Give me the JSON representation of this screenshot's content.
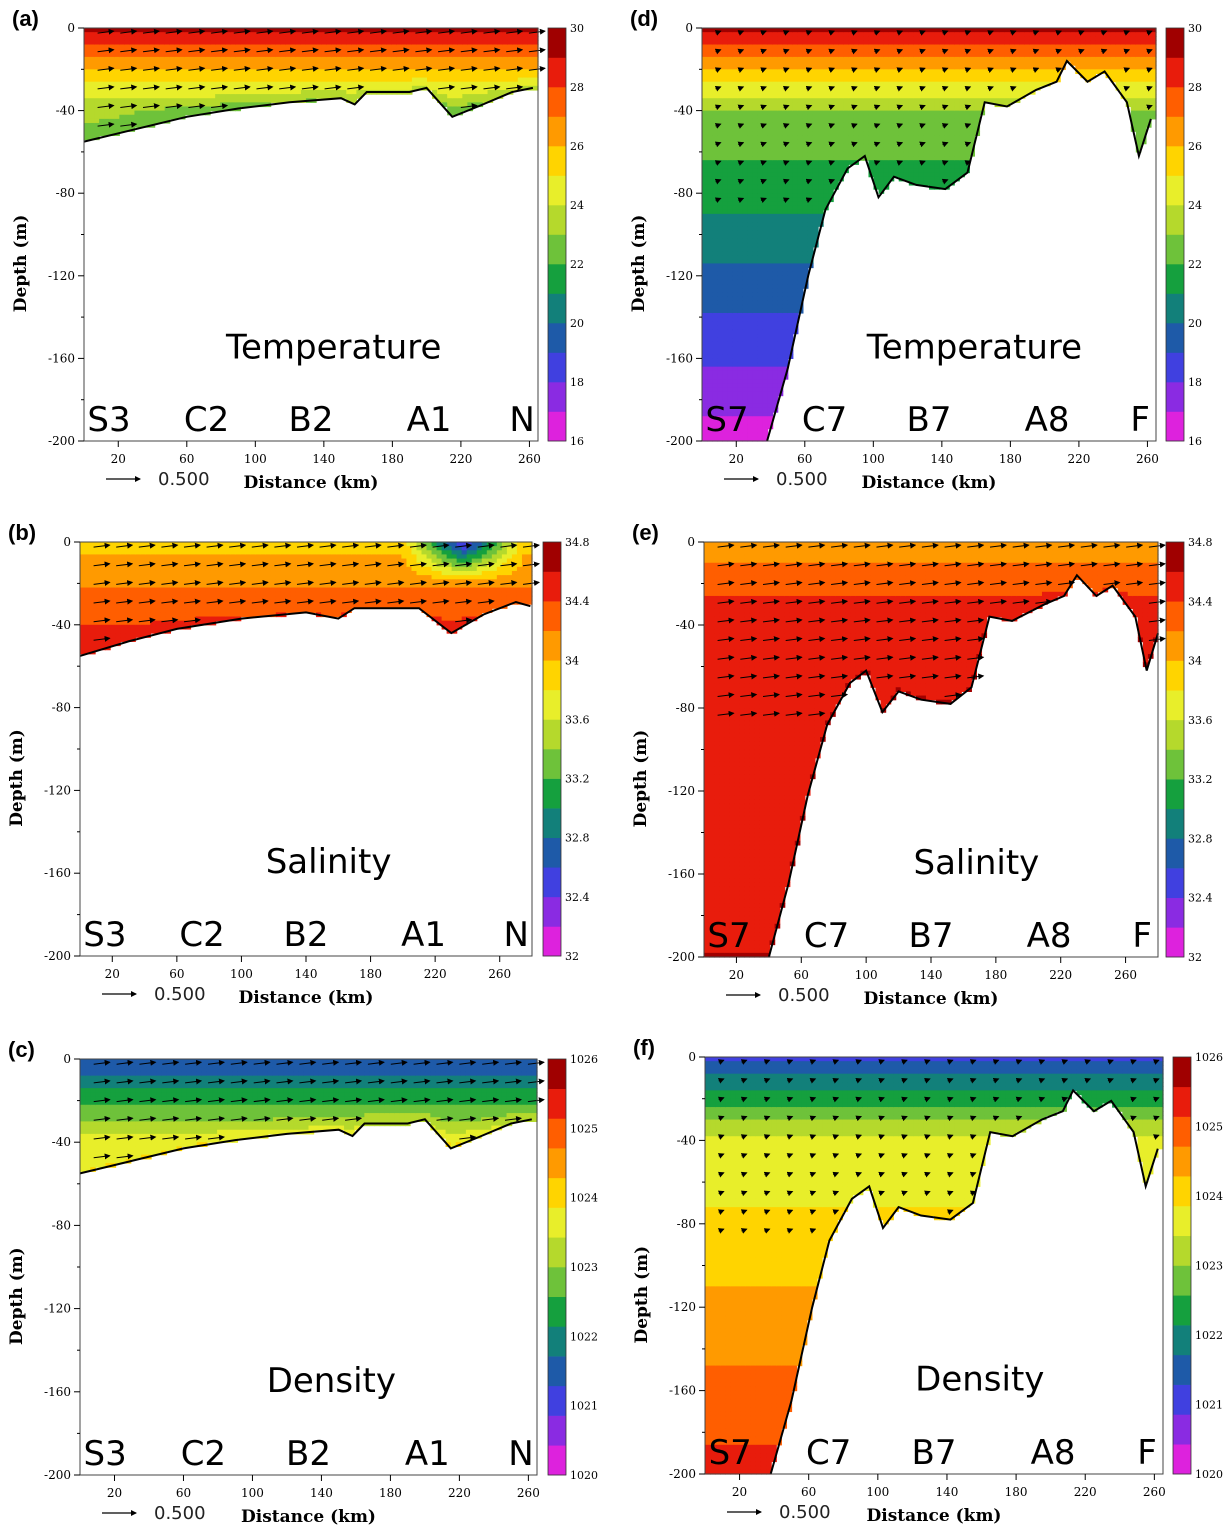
{
  "colorbar_colors": [
    "#dd22dd",
    "#8a2be2",
    "#4040e0",
    "#1e5aa8",
    "#12807a",
    "#15a03e",
    "#6ec23a",
    "#b5d92c",
    "#e8ee2a",
    "#ffd400",
    "#ff9a00",
    "#ff5e00",
    "#e81c0c",
    "#a00000"
  ],
  "chart_data": [
    {
      "id": "a",
      "type": "heatmap",
      "panel_label": "(a)",
      "title": "Temperature",
      "xlabel": "Distance (km)",
      "ylabel": "Depth (m)",
      "xticks": [
        "20",
        "60",
        "100",
        "140",
        "180",
        "220",
        "260"
      ],
      "xlim": [
        0,
        265
      ],
      "yticks": [
        "0",
        "-40",
        "-80",
        "-120",
        "-160",
        "-200"
      ],
      "ylim": [
        -200,
        0
      ],
      "stations": [
        "S3",
        "C2",
        "B2",
        "A1",
        "N"
      ],
      "reference_vector": "0.500",
      "colorbar": {
        "min": 16,
        "max": 30,
        "labels": [
          "30",
          "28",
          "26",
          "24",
          "22",
          "20",
          "18",
          "16"
        ]
      },
      "bottom_depth": [
        [
          0,
          -55
        ],
        [
          30,
          -49
        ],
        [
          60,
          -43
        ],
        [
          90,
          -39
        ],
        [
          120,
          -36
        ],
        [
          150,
          -34
        ],
        [
          158,
          -37
        ],
        [
          165,
          -31
        ],
        [
          190,
          -31
        ],
        [
          200,
          -29
        ],
        [
          215,
          -43
        ],
        [
          230,
          -38
        ],
        [
          250,
          -31
        ],
        [
          262,
          -29
        ]
      ],
      "surface_value": 29.5,
      "bottom_value": 23,
      "far_field": {
        "gradient_m": 0,
        "floor_value": 20
      }
    },
    {
      "id": "b",
      "type": "heatmap",
      "panel_label": "(b)",
      "title": "Salinity",
      "xlabel": "Distance (km)",
      "ylabel": "Depth (m)",
      "xticks": [
        "20",
        "60",
        "100",
        "140",
        "180",
        "220",
        "260"
      ],
      "xlim": [
        0,
        280
      ],
      "yticks": [
        "0",
        "-40",
        "-80",
        "-120",
        "-160",
        "-200"
      ],
      "ylim": [
        -200,
        0
      ],
      "stations": [
        "S3",
        "C2",
        "B2",
        "A1",
        "N"
      ],
      "reference_vector": "0.500",
      "colorbar": {
        "min": 32,
        "max": 34.8,
        "labels": [
          "34.8",
          "34.4",
          "34",
          "33.6",
          "33.2",
          "32.8",
          "32.4",
          "32"
        ]
      },
      "bottom_depth": [
        [
          0,
          -55
        ],
        [
          30,
          -48
        ],
        [
          60,
          -42
        ],
        [
          100,
          -37
        ],
        [
          140,
          -34
        ],
        [
          160,
          -37
        ],
        [
          170,
          -32
        ],
        [
          210,
          -32
        ],
        [
          230,
          -44
        ],
        [
          250,
          -35
        ],
        [
          270,
          -29
        ],
        [
          279,
          -31
        ]
      ],
      "surface_value": 33.9,
      "bottom_value": 34.4,
      "low_salinity_patch": {
        "x": [
          200,
          275
        ],
        "min_value": 32.3
      }
    },
    {
      "id": "c",
      "type": "heatmap",
      "panel_label": "(c)",
      "title": "Density",
      "xlabel": "Distance (km)",
      "ylabel": "Depth (m)",
      "xticks": [
        "20",
        "60",
        "100",
        "140",
        "180",
        "220",
        "260"
      ],
      "xlim": [
        0,
        265
      ],
      "yticks": [
        "0",
        "-40",
        "-80",
        "-120",
        "-160",
        "-200"
      ],
      "ylim": [
        -200,
        0
      ],
      "stations": [
        "S3",
        "C2",
        "B2",
        "A1",
        "N"
      ],
      "reference_vector": "0.500",
      "colorbar": {
        "min": 1020,
        "max": 1026,
        "labels": [
          "1026",
          "1025",
          "1024",
          "1023",
          "1022",
          "1021",
          "1020"
        ]
      },
      "bottom_depth": [
        [
          0,
          -55
        ],
        [
          30,
          -49
        ],
        [
          60,
          -43
        ],
        [
          90,
          -39
        ],
        [
          120,
          -36
        ],
        [
          150,
          -34
        ],
        [
          158,
          -37
        ],
        [
          165,
          -31
        ],
        [
          190,
          -31
        ],
        [
          200,
          -29
        ],
        [
          215,
          -43
        ],
        [
          230,
          -38
        ],
        [
          250,
          -31
        ],
        [
          262,
          -29
        ]
      ],
      "surface_value": 1021.2,
      "bottom_value": 1023.6
    },
    {
      "id": "d",
      "type": "heatmap",
      "panel_label": "(d)",
      "title": "Temperature",
      "xlabel": "Distance (km)",
      "ylabel": "Depth (m)",
      "xticks": [
        "20",
        "60",
        "100",
        "140",
        "180",
        "220",
        "260"
      ],
      "xlim": [
        0,
        265
      ],
      "yticks": [
        "0",
        "-40",
        "-80",
        "-120",
        "-160",
        "-200"
      ],
      "ylim": [
        -200,
        0
      ],
      "stations": [
        "S7",
        "C7",
        "B7",
        "A8",
        "F"
      ],
      "reference_vector": "0.500",
      "colorbar": {
        "min": 16,
        "max": 30,
        "labels": [
          "30",
          "28",
          "26",
          "24",
          "22",
          "20",
          "18",
          "16"
        ]
      },
      "bottom_depth": [
        [
          38,
          -200
        ],
        [
          50,
          -165
        ],
        [
          62,
          -120
        ],
        [
          72,
          -88
        ],
        [
          85,
          -68
        ],
        [
          95,
          -62
        ],
        [
          103,
          -82
        ],
        [
          112,
          -72
        ],
        [
          125,
          -76
        ],
        [
          142,
          -78
        ],
        [
          155,
          -70
        ],
        [
          165,
          -36
        ],
        [
          178,
          -38
        ],
        [
          195,
          -30
        ],
        [
          207,
          -26
        ],
        [
          213,
          -16
        ],
        [
          225,
          -26
        ],
        [
          235,
          -21
        ],
        [
          248,
          -36
        ],
        [
          255,
          -62
        ],
        [
          262,
          -44
        ]
      ],
      "surface_value": 29.5,
      "bottom_value": 23,
      "far_field": {
        "gradient_m": 200,
        "floor_value": 16.5
      }
    },
    {
      "id": "e",
      "type": "heatmap",
      "panel_label": "(e)",
      "title": "Salinity",
      "xlabel": "Distance (km)",
      "ylabel": "Depth (m)",
      "xticks": [
        "20",
        "60",
        "100",
        "140",
        "180",
        "220",
        "260"
      ],
      "xlim": [
        0,
        280
      ],
      "yticks": [
        "0",
        "-40",
        "-80",
        "-120",
        "-160",
        "-200"
      ],
      "ylim": [
        -200,
        0
      ],
      "stations": [
        "S7",
        "C7",
        "B7",
        "A8",
        "F"
      ],
      "reference_vector": "0.500",
      "colorbar": {
        "min": 32,
        "max": 34.8,
        "labels": [
          "34.8",
          "34.4",
          "34",
          "33.6",
          "33.2",
          "32.8",
          "32.4",
          "32"
        ]
      },
      "bottom_depth": [
        [
          40,
          -200
        ],
        [
          52,
          -165
        ],
        [
          64,
          -122
        ],
        [
          76,
          -88
        ],
        [
          90,
          -68
        ],
        [
          100,
          -62
        ],
        [
          110,
          -82
        ],
        [
          120,
          -72
        ],
        [
          134,
          -76
        ],
        [
          152,
          -78
        ],
        [
          165,
          -70
        ],
        [
          176,
          -36
        ],
        [
          190,
          -38
        ],
        [
          210,
          -30
        ],
        [
          222,
          -26
        ],
        [
          230,
          -16
        ],
        [
          242,
          -26
        ],
        [
          252,
          -21
        ],
        [
          266,
          -36
        ],
        [
          273,
          -62
        ],
        [
          280,
          -44
        ]
      ],
      "surface_value": 34.05,
      "bottom_value": 34.55
    },
    {
      "id": "f",
      "type": "heatmap",
      "panel_label": "(f)",
      "title": "Density",
      "xlabel": "Distance (km)",
      "ylabel": "Depth (m)",
      "xticks": [
        "20",
        "60",
        "100",
        "140",
        "180",
        "220",
        "260"
      ],
      "xlim": [
        0,
        265
      ],
      "yticks": [
        "0",
        "-40",
        "-80",
        "-120",
        "-160",
        "-200"
      ],
      "ylim": [
        -200,
        0
      ],
      "stations": [
        "S7",
        "C7",
        "B7",
        "A8",
        "F"
      ],
      "reference_vector": "0.500",
      "colorbar": {
        "min": 1020,
        "max": 1026,
        "labels": [
          "1026",
          "1025",
          "1024",
          "1023",
          "1022",
          "1021",
          "1020"
        ]
      },
      "bottom_depth": [
        [
          38,
          -200
        ],
        [
          50,
          -165
        ],
        [
          62,
          -120
        ],
        [
          72,
          -88
        ],
        [
          85,
          -68
        ],
        [
          95,
          -62
        ],
        [
          103,
          -82
        ],
        [
          112,
          -72
        ],
        [
          125,
          -76
        ],
        [
          142,
          -78
        ],
        [
          155,
          -70
        ],
        [
          165,
          -36
        ],
        [
          178,
          -38
        ],
        [
          195,
          -30
        ],
        [
          207,
          -26
        ],
        [
          213,
          -16
        ],
        [
          225,
          -26
        ],
        [
          235,
          -21
        ],
        [
          248,
          -36
        ],
        [
          255,
          -62
        ],
        [
          262,
          -44
        ]
      ],
      "surface_value": 1021.1,
      "bottom_value": 1023.5,
      "far_field": {
        "gradient_m": 200,
        "floor_value": 1025.3
      }
    }
  ]
}
